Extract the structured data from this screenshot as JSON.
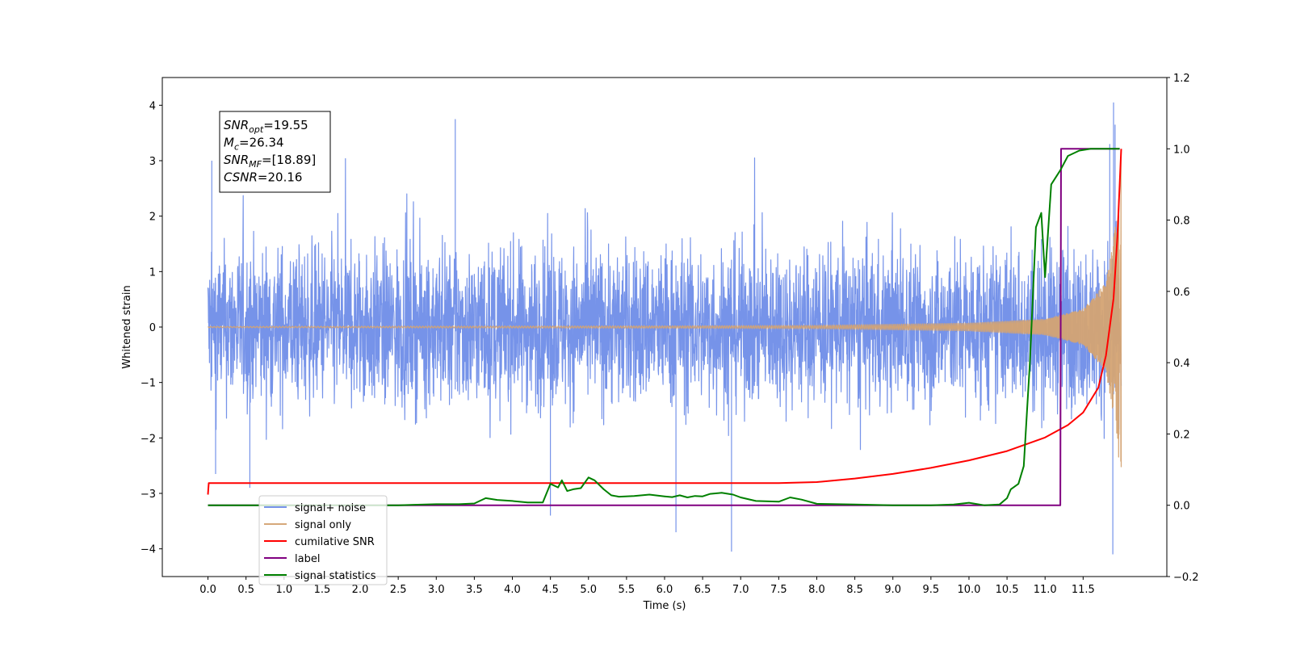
{
  "chart_data": {
    "type": "line",
    "xlabel": "Time (s)",
    "ylabel": "Whitened strain",
    "xlim": [
      -0.6,
      12.6
    ],
    "ylim": [
      -4.5,
      4.5
    ],
    "y2lim": [
      -0.2,
      1.2
    ],
    "x_ticks": [
      "0.0",
      "0.5",
      "1.0",
      "1.5",
      "2.0",
      "2.5",
      "3.0",
      "3.5",
      "4.0",
      "4.5",
      "5.0",
      "5.5",
      "6.0",
      "6.5",
      "7.0",
      "7.5",
      "8.0",
      "8.5",
      "9.0",
      "9.5",
      "10.0",
      "10.5",
      "11.0",
      "11.5"
    ],
    "y_ticks": [
      "4",
      "3",
      "2",
      "1",
      "0",
      "−1",
      "−2",
      "−3",
      "−4"
    ],
    "y2_ticks": [
      "1.2",
      "1.0",
      "0.8",
      "0.6",
      "0.4",
      "0.2",
      "0.0",
      "−0.2"
    ],
    "grid": false,
    "legend_placement": "lower-left",
    "annotation": {
      "lines": [
        {
          "sym": "SNR",
          "sub": "opt",
          "value": "=19.55"
        },
        {
          "sym": "M",
          "sub": "c",
          "value": "=26.34"
        },
        {
          "sym": "SNR",
          "sub": "MF",
          "value": "=[18.89]"
        },
        {
          "sym": "CSNR",
          "sub": "",
          "value": "=20.16"
        }
      ]
    },
    "series": [
      {
        "name": "signal+ noise",
        "axis": "left",
        "color": "#4169e1",
        "opacity": 0.72,
        "kind": "noisy",
        "x_start": 0.0,
        "x_end": 12.0,
        "envelope_amplitude": 1.5,
        "spike_peaks": [
          {
            "x": 3.25,
            "y": 3.75
          },
          {
            "x": 11.9,
            "y": 4.05
          },
          {
            "x": 11.92,
            "y": 3.65
          },
          {
            "x": 6.88,
            "y": -4.05
          },
          {
            "x": 11.89,
            "y": -4.1
          },
          {
            "x": 6.15,
            "y": -3.7
          },
          {
            "x": 0.05,
            "y": 3.0
          },
          {
            "x": 0.1,
            "y": -2.65
          },
          {
            "x": 4.5,
            "y": -3.4
          },
          {
            "x": 0.55,
            "y": -2.9
          },
          {
            "x": 11.85,
            "y": 3.3
          }
        ]
      },
      {
        "name": "signal only",
        "axis": "left",
        "color": "#d4a373",
        "opacity": 0.95,
        "kind": "chirp",
        "x_start": 0.0,
        "x_end": 12.0,
        "amplitude_points": [
          [
            0.0,
            0.01
          ],
          [
            6.0,
            0.02
          ],
          [
            8.0,
            0.03
          ],
          [
            10.0,
            0.07
          ],
          [
            11.0,
            0.14
          ],
          [
            11.5,
            0.32
          ],
          [
            11.8,
            0.8
          ],
          [
            11.95,
            2.0
          ],
          [
            12.0,
            3.1
          ]
        ]
      },
      {
        "name": "cumilative SNR",
        "axis": "right",
        "color": "#ff0000",
        "opacity": 1.0,
        "kind": "line",
        "x": [
          0.0,
          0.01,
          7.5,
          8.0,
          8.5,
          9.0,
          9.5,
          10.0,
          10.5,
          11.0,
          11.3,
          11.5,
          11.7,
          11.8,
          11.9,
          11.95,
          12.0
        ],
        "y": [
          0.03,
          0.062,
          0.062,
          0.065,
          0.075,
          0.088,
          0.105,
          0.126,
          0.152,
          0.19,
          0.225,
          0.26,
          0.33,
          0.42,
          0.58,
          0.75,
          1.0
        ]
      },
      {
        "name": "label",
        "axis": "right",
        "color": "#800080",
        "opacity": 1.0,
        "kind": "line",
        "x": [
          0.0,
          11.2,
          11.21,
          11.98
        ],
        "y": [
          0.0,
          0.0,
          1.0,
          1.0
        ]
      },
      {
        "name": "signal statistics",
        "axis": "right",
        "color": "#008000",
        "opacity": 1.0,
        "kind": "line",
        "x": [
          0.0,
          2.5,
          3.0,
          3.3,
          3.5,
          3.65,
          3.8,
          4.0,
          4.2,
          4.4,
          4.5,
          4.6,
          4.65,
          4.72,
          4.8,
          4.9,
          5.0,
          5.08,
          5.2,
          5.3,
          5.4,
          5.6,
          5.8,
          6.0,
          6.1,
          6.2,
          6.3,
          6.4,
          6.5,
          6.6,
          6.75,
          6.9,
          7.0,
          7.2,
          7.5,
          7.65,
          7.8,
          8.0,
          8.5,
          9.0,
          9.5,
          9.8,
          10.0,
          10.2,
          10.4,
          10.5,
          10.55,
          10.65,
          10.72,
          10.8,
          10.88,
          10.95,
          11.0,
          11.08,
          11.2,
          11.3,
          11.45,
          11.6,
          11.98
        ],
        "y": [
          0.0,
          0.0,
          0.003,
          0.003,
          0.005,
          0.02,
          0.015,
          0.012,
          0.008,
          0.008,
          0.06,
          0.05,
          0.07,
          0.04,
          0.045,
          0.048,
          0.078,
          0.07,
          0.045,
          0.028,
          0.024,
          0.026,
          0.03,
          0.025,
          0.023,
          0.028,
          0.022,
          0.026,
          0.025,
          0.032,
          0.035,
          0.03,
          0.022,
          0.012,
          0.01,
          0.022,
          0.016,
          0.004,
          0.002,
          0.0,
          0.0,
          0.002,
          0.007,
          0.0,
          0.002,
          0.02,
          0.045,
          0.06,
          0.11,
          0.4,
          0.78,
          0.82,
          0.64,
          0.9,
          0.94,
          0.98,
          0.995,
          1.0,
          1.0
        ]
      }
    ],
    "legend": [
      {
        "label": "signal+ noise",
        "color": "#4169e1",
        "opacity": 0.72
      },
      {
        "label": "signal only",
        "color": "#d4a373",
        "opacity": 0.95
      },
      {
        "label": "cumilative SNR",
        "color": "#ff0000",
        "opacity": 1.0
      },
      {
        "label": "label",
        "color": "#800080",
        "opacity": 1.0
      },
      {
        "label": "signal statistics",
        "color": "#008000",
        "opacity": 1.0
      }
    ]
  }
}
